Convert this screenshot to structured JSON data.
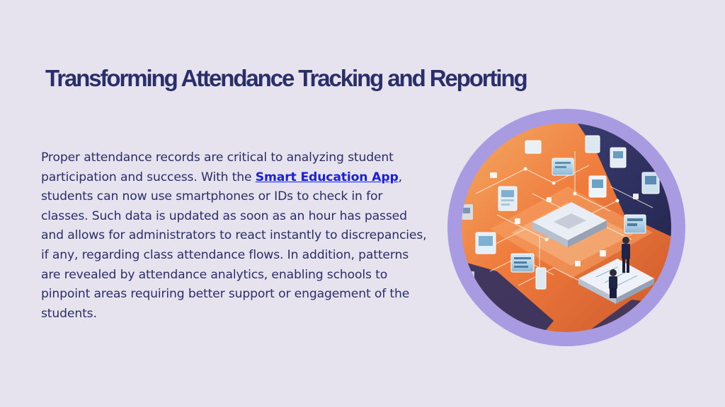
{
  "slide": {
    "title": "Transforming Attendance Tracking and Reporting",
    "paragraph": {
      "before_link": "Proper attendance records are critical to analyzing student participation and success. With the ",
      "link_text": "Smart Education App",
      "after_link": ", students can now use smartphones or IDs to check in for classes. Such data is updated as soon as an hour has passed and allows for administrators to react instantly to discrepancies, if any, regarding class attendance flows. In addition, patterns are revealed by attendance analytics, enabling schools to pinpoint areas requiring better support or engagement of the students."
    },
    "illustration": {
      "icon": "isometric-data-network-illustration"
    }
  },
  "colors": {
    "background": "#e6e2ee",
    "title": "#2a2e6a",
    "text": "#2a2e6a",
    "link": "#1a20d8",
    "ring": "#a99be2",
    "scene_orange": "#f07a3a",
    "scene_dark": "#2c2f5e"
  }
}
